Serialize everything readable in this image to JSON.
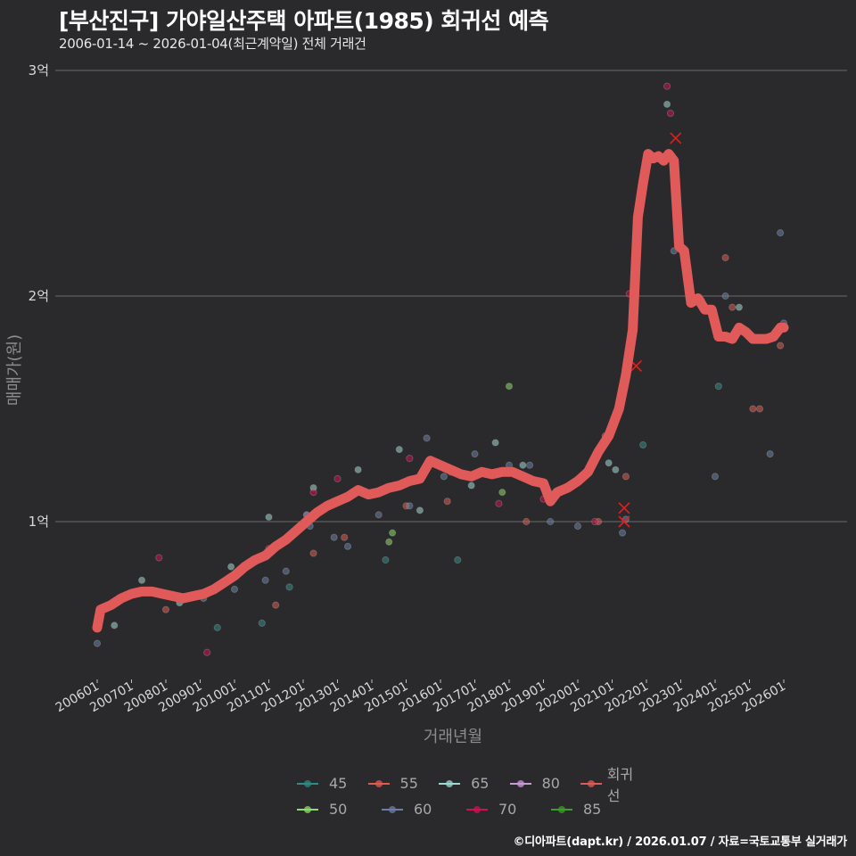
{
  "header": {
    "title": "[부산진구] 가야일산주택 아파트(1985) 회귀선 예측",
    "subtitle": "2006-01-14 ~ 2026-01-04(최근계약일) 전체 거래건"
  },
  "caption": "©디아파트(dapt.kr) / 2026.01.07 / 자료=국토교통부 실거래가",
  "colors": {
    "background": "#2a2a2c",
    "regression": "#e05a5a",
    "gridline": "#6a6a6a",
    "series_45": "#2e8b86",
    "series_50": "#8ddc6a",
    "series_55": "#e05a50",
    "series_60": "#6a7fa8",
    "series_65": "#9fd8d2",
    "series_70": "#d01050",
    "series_80": "#c89ad8",
    "series_85": "#3aa02a"
  },
  "legend": {
    "row1": [
      {
        "label": "45",
        "color": "#2e8b86"
      },
      {
        "label": "55",
        "color": "#e05a50"
      },
      {
        "label": "65",
        "color": "#9fd8d2"
      },
      {
        "label": "80",
        "color": "#c89ad8"
      },
      {
        "label": "회귀선",
        "color": "#e05a5a"
      }
    ],
    "row2": [
      {
        "label": "50",
        "color": "#8ddc6a"
      },
      {
        "label": "60",
        "color": "#6a7fa8"
      },
      {
        "label": "70",
        "color": "#d01050"
      },
      {
        "label": "85",
        "color": "#3aa02a"
      }
    ]
  },
  "chart_data": {
    "type": "scatter",
    "title": "[부산진구] 가야일산주택 아파트(1985) 회귀선 예측",
    "subtitle": "2006-01-14 ~ 2026-01-04(최근계약일) 전체 거래건",
    "xlabel": "거래년월",
    "ylabel": "매매가(원)",
    "y_ticks": [
      "1억",
      "2억",
      "3억"
    ],
    "y_tick_values_eok": [
      1,
      2,
      3
    ],
    "ylim_eok": [
      0.28,
      3.05
    ],
    "x_ticks": [
      "200601",
      "200701",
      "200801",
      "200901",
      "201001",
      "201101",
      "201201",
      "201301",
      "201401",
      "201501",
      "201601",
      "201701",
      "201801",
      "201901",
      "202001",
      "202101",
      "202201",
      "202301",
      "202401",
      "202501",
      "202601"
    ],
    "grid": "horizontal major lines",
    "legend_position": "bottom",
    "legend_entries": [
      "45",
      "50",
      "55",
      "60",
      "65",
      "70",
      "80",
      "85",
      "회귀선"
    ],
    "regression_line": {
      "name": "회귀선",
      "x": [
        2006.0,
        2006.1,
        2006.4,
        2006.7,
        2007.0,
        2007.3,
        2007.6,
        2007.9,
        2008.2,
        2008.5,
        2008.8,
        2009.1,
        2009.4,
        2009.7,
        2010.0,
        2010.3,
        2010.6,
        2010.9,
        2011.2,
        2011.5,
        2011.8,
        2012.1,
        2012.4,
        2012.7,
        2013.0,
        2013.3,
        2013.6,
        2013.9,
        2014.2,
        2014.5,
        2014.8,
        2015.1,
        2015.4,
        2015.7,
        2016.0,
        2016.3,
        2016.6,
        2016.9,
        2017.2,
        2017.5,
        2017.8,
        2018.1,
        2018.4,
        2018.7,
        2019.0,
        2019.2,
        2019.4,
        2019.7,
        2020.0,
        2020.3,
        2020.6,
        2020.9,
        2021.2,
        2021.4,
        2021.6,
        2021.75,
        2021.9,
        2022.05,
        2022.2,
        2022.35,
        2022.5,
        2022.65,
        2022.8,
        2022.95,
        2023.1,
        2023.3,
        2023.5,
        2023.7,
        2023.9,
        2024.1,
        2024.3,
        2024.5,
        2024.7,
        2024.9,
        2025.1,
        2025.3,
        2025.5,
        2025.7,
        2025.9,
        2026.0
      ],
      "y_eok": [
        0.53,
        0.61,
        0.63,
        0.66,
        0.68,
        0.69,
        0.69,
        0.68,
        0.67,
        0.66,
        0.67,
        0.68,
        0.7,
        0.73,
        0.76,
        0.8,
        0.83,
        0.85,
        0.89,
        0.92,
        0.96,
        1.0,
        1.04,
        1.07,
        1.09,
        1.11,
        1.14,
        1.12,
        1.13,
        1.15,
        1.16,
        1.18,
        1.19,
        1.27,
        1.25,
        1.23,
        1.21,
        1.2,
        1.22,
        1.21,
        1.22,
        1.22,
        1.2,
        1.18,
        1.17,
        1.09,
        1.13,
        1.15,
        1.18,
        1.22,
        1.31,
        1.38,
        1.5,
        1.65,
        1.85,
        2.35,
        2.5,
        2.63,
        2.61,
        2.62,
        2.6,
        2.63,
        2.6,
        2.22,
        2.2,
        1.97,
        1.99,
        1.94,
        1.94,
        1.82,
        1.82,
        1.81,
        1.86,
        1.84,
        1.81,
        1.81,
        1.81,
        1.82,
        1.86,
        1.86
      ]
    },
    "series": [
      {
        "name": "45",
        "points_eok": [
          [
            2009.5,
            0.53
          ],
          [
            2010.8,
            0.55
          ],
          [
            2011.6,
            0.71
          ],
          [
            2014.4,
            0.83
          ],
          [
            2016.5,
            0.83
          ],
          [
            2021.9,
            1.34
          ],
          [
            2024.1,
            1.6
          ]
        ]
      },
      {
        "name": "50",
        "points_eok": [
          [
            2014.5,
            0.91
          ],
          [
            2014.6,
            0.95
          ],
          [
            2017.8,
            1.13
          ],
          [
            2018.0,
            1.6
          ]
        ]
      },
      {
        "name": "55",
        "points_eok": [
          [
            2008.0,
            0.61
          ],
          [
            2011.2,
            0.63
          ],
          [
            2012.3,
            0.86
          ],
          [
            2013.2,
            0.93
          ],
          [
            2015.0,
            1.07
          ],
          [
            2016.2,
            1.09
          ],
          [
            2018.5,
            1.0
          ],
          [
            2020.6,
            1.0
          ],
          [
            2020.8,
            1.38
          ],
          [
            2021.4,
            1.2
          ],
          [
            2024.3,
            2.17
          ],
          [
            2024.5,
            1.95
          ],
          [
            2025.1,
            1.5
          ],
          [
            2025.3,
            1.5
          ],
          [
            2025.9,
            1.78
          ]
        ]
      },
      {
        "name": "60",
        "points_eok": [
          [
            2006.0,
            0.46
          ],
          [
            2009.1,
            0.66
          ],
          [
            2010.0,
            0.7
          ],
          [
            2010.9,
            0.74
          ],
          [
            2011.5,
            0.78
          ],
          [
            2012.2,
            0.98
          ],
          [
            2012.9,
            0.93
          ],
          [
            2013.3,
            0.89
          ],
          [
            2014.2,
            1.03
          ],
          [
            2015.1,
            1.07
          ],
          [
            2015.6,
            1.37
          ],
          [
            2016.1,
            1.2
          ],
          [
            2017.0,
            1.3
          ],
          [
            2018.0,
            1.25
          ],
          [
            2018.6,
            1.25
          ],
          [
            2019.2,
            1.0
          ],
          [
            2020.0,
            0.98
          ],
          [
            2021.3,
            0.95
          ],
          [
            2021.4,
            1.01
          ],
          [
            2022.8,
            2.2
          ],
          [
            2023.6,
            1.98
          ],
          [
            2024.0,
            1.2
          ],
          [
            2024.3,
            2.0
          ],
          [
            2025.6,
            1.3
          ],
          [
            2026.0,
            1.88
          ],
          [
            2025.9,
            2.28
          ]
        ]
      },
      {
        "name": "65",
        "points_eok": [
          [
            2006.5,
            0.54
          ],
          [
            2007.3,
            0.74
          ],
          [
            2008.4,
            0.64
          ],
          [
            2009.9,
            0.8
          ],
          [
            2011.0,
            1.02
          ],
          [
            2012.3,
            1.15
          ],
          [
            2013.6,
            1.23
          ],
          [
            2014.8,
            1.32
          ],
          [
            2015.4,
            1.05
          ],
          [
            2016.9,
            1.16
          ],
          [
            2017.6,
            1.35
          ],
          [
            2018.4,
            1.25
          ],
          [
            2020.9,
            1.26
          ],
          [
            2021.1,
            1.23
          ],
          [
            2022.6,
            2.85
          ],
          [
            2024.7,
            1.95
          ]
        ]
      },
      {
        "name": "70",
        "points_eok": [
          [
            2007.8,
            0.84
          ],
          [
            2009.2,
            0.42
          ],
          [
            2011.0,
            0.88
          ],
          [
            2012.3,
            1.13
          ],
          [
            2013.0,
            1.19
          ],
          [
            2015.1,
            1.28
          ],
          [
            2016.3,
            1.22
          ],
          [
            2017.7,
            1.08
          ],
          [
            2019.0,
            1.1
          ],
          [
            2020.5,
            1.0
          ],
          [
            2021.5,
            2.01
          ],
          [
            2022.6,
            2.93
          ],
          [
            2022.7,
            2.81
          ]
        ]
      },
      {
        "name": "80",
        "points_eok": [
          [
            2012.1,
            1.03
          ]
        ]
      },
      {
        "name": "85",
        "points_eok": []
      }
    ]
  },
  "axes": {
    "y_title": "매매가(원)",
    "x_title": "거래년월",
    "y_ticks": [
      {
        "label": "3억",
        "y": 79
      },
      {
        "label": "2억",
        "y": 332
      },
      {
        "label": "1억",
        "y": 585
      }
    ],
    "x_ticks": [
      {
        "label": "200601",
        "x": 109
      },
      {
        "label": "200701",
        "x": 147.5
      },
      {
        "label": "200801",
        "x": 186
      },
      {
        "label": "200901",
        "x": 224.5
      },
      {
        "label": "201001",
        "x": 263
      },
      {
        "label": "201101",
        "x": 301.5
      },
      {
        "label": "201201",
        "x": 340
      },
      {
        "label": "201301",
        "x": 378.5
      },
      {
        "label": "201401",
        "x": 417
      },
      {
        "label": "201501",
        "x": 455.5
      },
      {
        "label": "201601",
        "x": 494
      },
      {
        "label": "201701",
        "x": 532.5
      },
      {
        "label": "201801",
        "x": 571
      },
      {
        "label": "201901",
        "x": 609.5
      },
      {
        "label": "202001",
        "x": 648
      },
      {
        "label": "202101",
        "x": 686.5
      },
      {
        "label": "202201",
        "x": 725
      },
      {
        "label": "202301",
        "x": 763.5
      },
      {
        "label": "202401",
        "x": 802
      },
      {
        "label": "202501",
        "x": 840.5
      },
      {
        "label": "202601",
        "x": 879
      }
    ]
  }
}
